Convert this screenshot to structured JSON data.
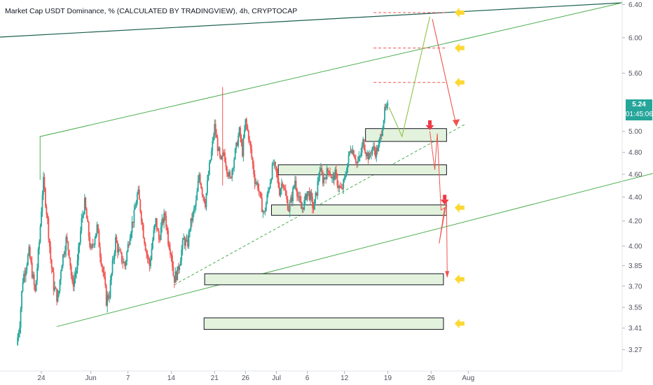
{
  "header": {
    "title": "Market Cap USDT Dominance, % (CALCULATED BY TRADINGVIEW), 4h, CRYPTOCAP"
  },
  "price_badge": {
    "price": "5.24",
    "countdown": "01:45:06",
    "color": "#26a69a"
  },
  "chart_data": {
    "type": "candlestick",
    "title": "Market Cap USDT Dominance, % (CALCULATED BY TRADINGVIEW), 4h, CRYPTOCAP",
    "y_scale": "log",
    "ylim": [
      3.18,
      6.43
    ],
    "y_ticks": [
      "6.40",
      "6.00",
      "5.60",
      "5.24",
      "5.00",
      "4.80",
      "4.60",
      "4.40",
      "4.20",
      "4.00",
      "3.85",
      "3.70",
      "3.55",
      "3.41",
      "3.27"
    ],
    "y_tick_values": [
      6.4,
      6.0,
      5.6,
      5.24,
      5.0,
      4.8,
      4.6,
      4.4,
      4.2,
      4.0,
      3.85,
      3.7,
      3.55,
      3.41,
      3.27
    ],
    "x_ticks": [
      "24",
      "Jun",
      "7",
      "14",
      "21",
      "26",
      "Jul",
      "6",
      "12",
      "19",
      "26",
      "Aug"
    ],
    "x_tick_days": [
      -7,
      1,
      7,
      14,
      21,
      26,
      31,
      36,
      42,
      49,
      56,
      62
    ],
    "last_price": 5.24,
    "colors": {
      "up": "#26a69a",
      "down": "#ef5350",
      "support_zone_fill": "#e3f2dc",
      "trend_line": "#4caf50",
      "outer_line": "#1b5e4e",
      "target_arrow": "#fdd835",
      "bearish_arrow": "#f23645",
      "target_level": "#ef5350"
    },
    "price_path": [
      [
        -11,
        3.3
      ],
      [
        -10.5,
        3.45
      ],
      [
        -10,
        3.75
      ],
      [
        -9,
        3.95
      ],
      [
        -8,
        3.65
      ],
      [
        -7.3,
        4.05
      ],
      [
        -6.7,
        4.55
      ],
      [
        -6,
        4.2
      ],
      [
        -5.5,
        3.9
      ],
      [
        -5,
        3.7
      ],
      [
        -4.3,
        3.6
      ],
      [
        -3.8,
        3.85
      ],
      [
        -3,
        4.05
      ],
      [
        -2.5,
        3.95
      ],
      [
        -2,
        3.7
      ],
      [
        -1.2,
        3.85
      ],
      [
        -0.5,
        4.2
      ],
      [
        0,
        4.35
      ],
      [
        0.5,
        4.15
      ],
      [
        1,
        3.95
      ],
      [
        1.5,
        4.05
      ],
      [
        2,
        4.15
      ],
      [
        2.5,
        3.95
      ],
      [
        3,
        3.8
      ],
      [
        3.5,
        3.6
      ],
      [
        4,
        3.65
      ],
      [
        4.5,
        3.85
      ],
      [
        5,
        4.05
      ],
      [
        5.5,
        3.95
      ],
      [
        6,
        3.9
      ],
      [
        6.5,
        3.85
      ],
      [
        7,
        4.0
      ],
      [
        7.3,
        4.1
      ],
      [
        8,
        4.25
      ],
      [
        8.6,
        4.45
      ],
      [
        9,
        4.3
      ],
      [
        9.5,
        4.1
      ],
      [
        10,
        3.95
      ],
      [
        10.5,
        3.85
      ],
      [
        11,
        4.05
      ],
      [
        11.5,
        4.2
      ],
      [
        12,
        4.05
      ],
      [
        12.6,
        4.2
      ],
      [
        13,
        4.25
      ],
      [
        13.5,
        4.05
      ],
      [
        14,
        3.95
      ],
      [
        14.4,
        3.75
      ],
      [
        15,
        3.8
      ],
      [
        15.6,
        3.95
      ],
      [
        16,
        4.05
      ],
      [
        16.6,
        4.0
      ],
      [
        17,
        4.15
      ],
      [
        17.5,
        4.25
      ],
      [
        18,
        4.35
      ],
      [
        18.5,
        4.6
      ],
      [
        19,
        4.45
      ],
      [
        19.5,
        4.35
      ],
      [
        20,
        4.6
      ],
      [
        20.5,
        4.8
      ],
      [
        21,
        5.05
      ],
      [
        21.5,
        4.85
      ],
      [
        22,
        4.7
      ],
      [
        22.5,
        4.8
      ],
      [
        23,
        4.65
      ],
      [
        23.5,
        4.55
      ],
      [
        24,
        4.7
      ],
      [
        24.5,
        4.85
      ],
      [
        25,
        5.0
      ],
      [
        25.5,
        4.8
      ],
      [
        26,
        5.1
      ],
      [
        26.5,
        4.95
      ],
      [
        27,
        4.75
      ],
      [
        27.5,
        4.55
      ],
      [
        28,
        4.5
      ],
      [
        28.5,
        4.35
      ],
      [
        29,
        4.25
      ],
      [
        29.5,
        4.4
      ],
      [
        30,
        4.55
      ],
      [
        30.5,
        4.7
      ],
      [
        31,
        4.6
      ],
      [
        31.5,
        4.45
      ],
      [
        32,
        4.55
      ],
      [
        32.5,
        4.4
      ],
      [
        33,
        4.3
      ],
      [
        33.5,
        4.4
      ],
      [
        34,
        4.55
      ],
      [
        34.5,
        4.4
      ],
      [
        35,
        4.3
      ],
      [
        35.5,
        4.35
      ],
      [
        36,
        4.45
      ],
      [
        36.5,
        4.4
      ],
      [
        37,
        4.3
      ],
      [
        37.5,
        4.45
      ],
      [
        38,
        4.65
      ],
      [
        38.5,
        4.55
      ],
      [
        39,
        4.6
      ],
      [
        39.5,
        4.65
      ],
      [
        40,
        4.55
      ],
      [
        40.5,
        4.6
      ],
      [
        41,
        4.5
      ],
      [
        41.5,
        4.45
      ],
      [
        42,
        4.55
      ],
      [
        42.5,
        4.7
      ],
      [
        43,
        4.85
      ],
      [
        43.5,
        4.8
      ],
      [
        44,
        4.7
      ],
      [
        44.5,
        4.75
      ],
      [
        45,
        4.9
      ],
      [
        45.5,
        4.8
      ],
      [
        46,
        4.75
      ],
      [
        46.5,
        4.85
      ],
      [
        47,
        4.8
      ],
      [
        47.5,
        4.85
      ],
      [
        48,
        5.0
      ],
      [
        48.5,
        5.2
      ],
      [
        49,
        5.24
      ]
    ],
    "big_wick": {
      "day": 22.3,
      "high": 5.45,
      "low": 4.5
    },
    "annotations": {
      "support_zones": [
        {
          "day_from": 45.4,
          "day_to": 58.5,
          "low": 4.93,
          "high": 5.0
        },
        {
          "day_from": 31.3,
          "day_to": 58.5,
          "low": 4.62,
          "high": 4.66
        },
        {
          "day_from": 30.2,
          "day_to": 58.5,
          "low": 4.27,
          "high": 4.31
        },
        {
          "day_from": 19.4,
          "day_to": 58.0,
          "low": 3.73,
          "high": 3.77
        },
        {
          "day_from": 19.3,
          "day_to": 58.0,
          "low": 3.42,
          "high": 3.46
        }
      ],
      "target_levels": [
        6.3,
        5.88,
        5.5
      ],
      "target_arrows": [
        6.3,
        5.88,
        5.5,
        4.31,
        3.75,
        3.44
      ],
      "bearish_markers": [
        {
          "day": 55.8,
          "price": 5.04
        },
        {
          "day": 58.2,
          "price": 4.36
        }
      ]
    }
  }
}
